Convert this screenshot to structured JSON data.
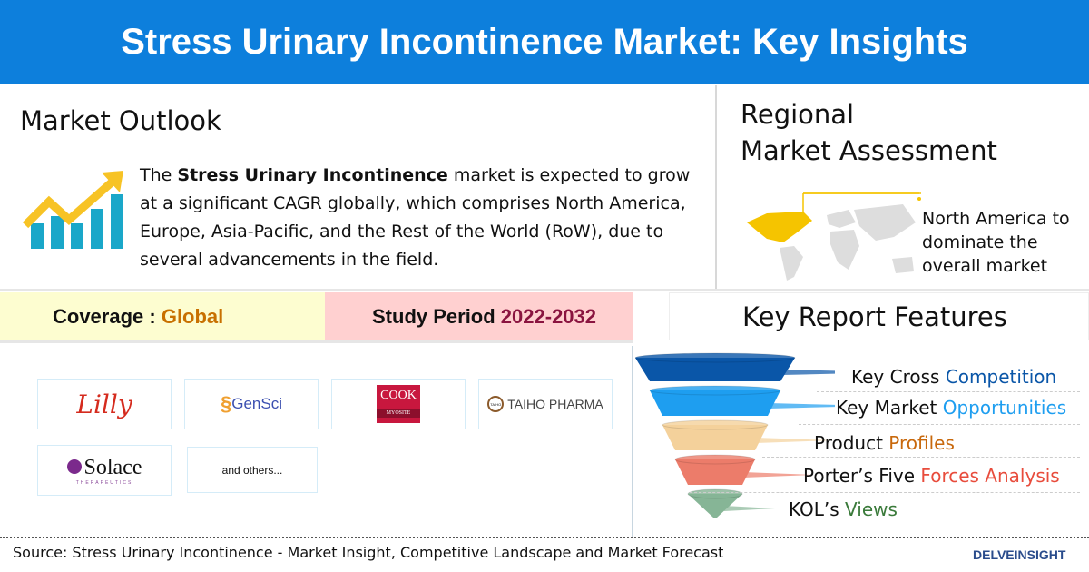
{
  "header": {
    "title": "Stress Urinary Incontinence Market: Key Insights"
  },
  "outlook": {
    "heading": "Market Outlook",
    "text_pre": "The ",
    "text_bold": "Stress Urinary Incontinence",
    "text_post": " market is expected to grow at a significant CAGR globally, which comprises North America, Europe, Asia-Pacific, and the Rest of the World (RoW), due to several advancements in the field.",
    "icon": "growth-chart-icon"
  },
  "regional": {
    "heading_line1": "Regional",
    "heading_line2": "Market Assessment",
    "text": "North America to dominate the overall market",
    "highlight_color": "#f5c400"
  },
  "coverage": {
    "label": "Coverage : ",
    "value": "Global"
  },
  "study": {
    "label": "Study Period ",
    "value": "2022-2032"
  },
  "features": {
    "heading": "Key Report Features",
    "items": [
      {
        "a": "Key Cross ",
        "b": "Competition",
        "color": "#0a56a8",
        "funnel": "#0a56a8"
      },
      {
        "a": "Key Market ",
        "b": "Opportunities",
        "color": "#1e9ef0",
        "funnel": "#1e9ef0"
      },
      {
        "a": "Product ",
        "b": "Profiles",
        "color": "#c8680c",
        "funnel": "#f4d19b"
      },
      {
        "a": "Porter’s Five ",
        "b": "Forces Analysis",
        "color": "#e84c3c",
        "funnel": "#ec7c6a"
      },
      {
        "a": "KOL’s ",
        "b": "Views",
        "color": "#3a7a3a",
        "funnel": "#86b596"
      }
    ]
  },
  "companies": {
    "lilly": "Lilly",
    "gensci": "GenSci",
    "cook": "COOK",
    "cook_sub": "MYOSITE",
    "taiho": "TAIHO PHARMA",
    "taiho_badge": "TAIHO",
    "solace": "Solace",
    "solace_sub": "THERAPEUTICS",
    "others": "and others..."
  },
  "footer": {
    "source": "Source: Stress Urinary Incontinence - Market Insight, Competitive Landscape and Market Forecast",
    "brand": "DELVEINSIGHT"
  }
}
